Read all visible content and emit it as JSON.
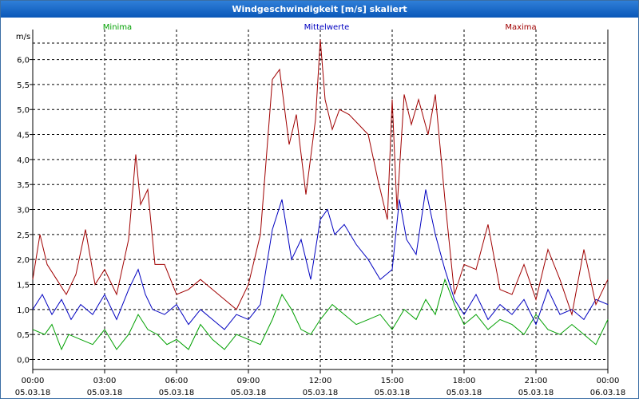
{
  "window": {
    "title": "Windgeschwindigkeit [m/s] skaliert"
  },
  "chart_data": {
    "type": "line",
    "title": "Windgeschwindigkeit [m/s] skaliert",
    "ylabel": "m/s",
    "xlabel": "",
    "ylim": [
      -0.2,
      6.6
    ],
    "y_ticks": [
      0.0,
      0.5,
      1.0,
      1.5,
      2.0,
      2.5,
      3.0,
      3.5,
      4.0,
      4.5,
      5.0,
      5.5,
      6.0
    ],
    "y_tick_labels": [
      "0,0",
      "0,5",
      "1,0",
      "1,5",
      "2,0",
      "2,5",
      "3,0",
      "3,5",
      "4,0",
      "4,5",
      "5,0",
      "5,5",
      "6,0"
    ],
    "xlim": [
      0,
      24
    ],
    "x_ticks": [
      0,
      3,
      6,
      9,
      12,
      15,
      18,
      21,
      24
    ],
    "x_tick_labels": [
      [
        "00:00",
        "05.03.18"
      ],
      [
        "03:00",
        "05.03.18"
      ],
      [
        "06:00",
        "05.03.18"
      ],
      [
        "09:00",
        "05.03.18"
      ],
      [
        "12:00",
        "05.03.18"
      ],
      [
        "15:00",
        "05.03.18"
      ],
      [
        "18:00",
        "05.03.18"
      ],
      [
        "21:00",
        "05.03.18"
      ],
      [
        "00:00",
        "06.03.18"
      ]
    ],
    "grid": true,
    "legend_position": "top",
    "series": [
      {
        "name": "Minima",
        "color": "#00a000",
        "x": [
          0,
          0.5,
          0.8,
          1.2,
          1.5,
          2,
          2.5,
          3,
          3.5,
          4,
          4.4,
          4.8,
          5.2,
          5.6,
          6,
          6.5,
          7,
          7.5,
          8,
          8.5,
          9,
          9.5,
          10,
          10.4,
          10.8,
          11.2,
          11.6,
          12,
          12.5,
          13,
          13.5,
          14,
          14.5,
          15,
          15.5,
          16,
          16.4,
          16.8,
          17.2,
          17.6,
          18,
          18.5,
          19,
          19.5,
          20,
          20.5,
          21,
          21.5,
          22,
          22.5,
          23,
          23.5,
          24
        ],
        "values": [
          0.6,
          0.5,
          0.7,
          0.2,
          0.5,
          0.4,
          0.3,
          0.6,
          0.2,
          0.5,
          0.9,
          0.6,
          0.5,
          0.3,
          0.4,
          0.2,
          0.7,
          0.4,
          0.2,
          0.5,
          0.4,
          0.3,
          0.8,
          1.3,
          1.0,
          0.6,
          0.5,
          0.8,
          1.1,
          0.9,
          0.7,
          0.8,
          0.9,
          0.6,
          1.0,
          0.8,
          1.2,
          0.9,
          1.6,
          1.1,
          0.7,
          0.9,
          0.6,
          0.8,
          0.7,
          0.5,
          0.9,
          0.6,
          0.5,
          0.7,
          0.5,
          0.3,
          0.8
        ]
      },
      {
        "name": "Mittelwerte",
        "color": "#0000c0",
        "x": [
          0,
          0.4,
          0.8,
          1.2,
          1.6,
          2,
          2.5,
          3,
          3.5,
          4,
          4.4,
          4.7,
          5,
          5.5,
          6,
          6.5,
          7,
          7.5,
          8,
          8.5,
          9,
          9.5,
          10,
          10.4,
          10.8,
          11.2,
          11.6,
          12,
          12.3,
          12.6,
          13,
          13.5,
          14,
          14.5,
          15,
          15.3,
          15.6,
          16,
          16.4,
          16.8,
          17.2,
          17.6,
          18,
          18.5,
          19,
          19.5,
          20,
          20.5,
          21,
          21.5,
          22,
          22.5,
          23,
          23.5,
          24
        ],
        "values": [
          1.0,
          1.3,
          0.9,
          1.2,
          0.8,
          1.1,
          0.9,
          1.3,
          0.8,
          1.4,
          1.8,
          1.3,
          1.0,
          0.9,
          1.1,
          0.7,
          1.0,
          0.8,
          0.6,
          0.9,
          0.8,
          1.1,
          2.6,
          3.2,
          2.0,
          2.4,
          1.6,
          2.8,
          3.0,
          2.5,
          2.7,
          2.3,
          2.0,
          1.6,
          1.8,
          3.2,
          2.4,
          2.1,
          3.4,
          2.5,
          1.8,
          1.2,
          0.9,
          1.3,
          0.8,
          1.1,
          0.9,
          1.2,
          0.7,
          1.4,
          0.9,
          1.0,
          0.8,
          1.2,
          1.1
        ]
      },
      {
        "name": "Maxima",
        "color": "#a00000",
        "x": [
          0,
          0.3,
          0.6,
          1.0,
          1.4,
          1.8,
          2.2,
          2.6,
          3.0,
          3.5,
          4.0,
          4.3,
          4.5,
          4.8,
          5.1,
          5.5,
          6.0,
          6.5,
          7.0,
          7.5,
          8.0,
          8.5,
          9.0,
          9.5,
          10.0,
          10.3,
          10.7,
          11.0,
          11.4,
          11.8,
          12.0,
          12.2,
          12.5,
          12.8,
          13.2,
          13.6,
          14.0,
          14.4,
          14.8,
          15.0,
          15.2,
          15.5,
          15.8,
          16.1,
          16.5,
          16.8,
          17.2,
          17.6,
          18.0,
          18.5,
          19.0,
          19.5,
          20.0,
          20.5,
          21.0,
          21.5,
          22.0,
          22.5,
          23.0,
          23.5,
          24.0
        ],
        "values": [
          1.6,
          2.5,
          1.9,
          1.6,
          1.3,
          1.7,
          2.6,
          1.5,
          1.8,
          1.3,
          2.4,
          4.1,
          3.1,
          3.4,
          1.9,
          1.9,
          1.3,
          1.4,
          1.6,
          1.4,
          1.2,
          1.0,
          1.5,
          2.5,
          5.6,
          5.8,
          4.3,
          4.9,
          3.3,
          4.8,
          6.4,
          5.2,
          4.6,
          5.0,
          4.9,
          4.7,
          4.5,
          3.6,
          2.8,
          5.2,
          3.0,
          5.3,
          4.7,
          5.2,
          4.5,
          5.3,
          3.2,
          1.3,
          1.9,
          1.8,
          2.7,
          1.4,
          1.3,
          1.9,
          1.2,
          2.2,
          1.6,
          0.9,
          2.2,
          1.1,
          1.6
        ]
      }
    ]
  }
}
